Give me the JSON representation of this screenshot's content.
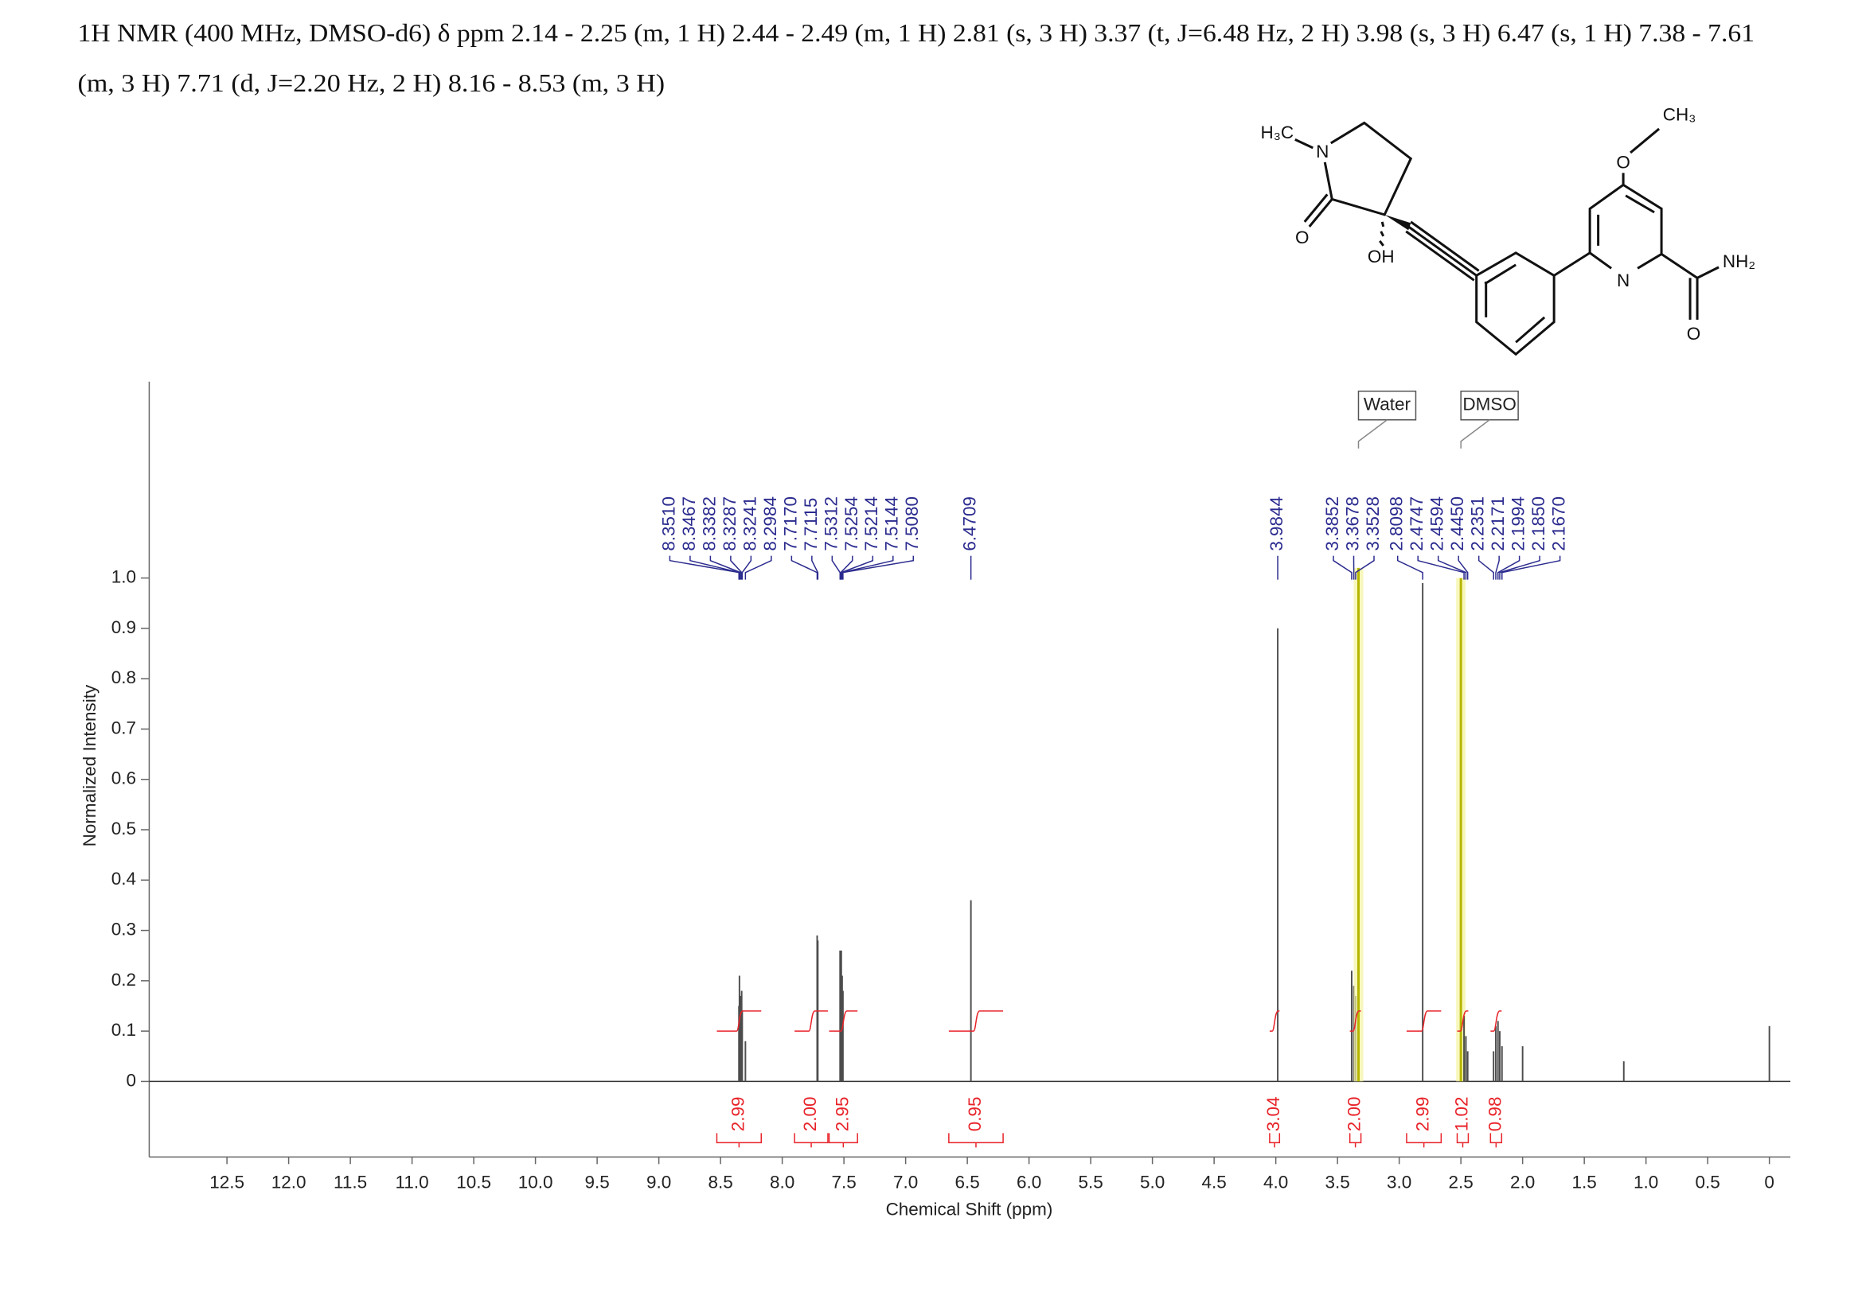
{
  "chart_data": {
    "type": "spectrum",
    "title_lines": [
      "1H NMR (400 MHz, DMSO-d6) δ ppm 2.14 - 2.25 (m, 1 H) 2.44 - 2.49 (m, 1 H) 2.81 (s, 3 H) 3.37 (t, J=6.48 Hz, 2 H) 3.98 (s, 3 H) 6.47 (s, 1 H) 7.38 - 7.61",
      "(m, 3 H) 7.71 (d, J=2.20 Hz, 2 H) 8.16 - 8.53 (m, 3 H)"
    ],
    "x_label": "Chemical Shift (ppm)",
    "y_label": "Normalized Intensity",
    "xlim": [
      13.13,
      -0.17
    ],
    "ylim": [
      -0.15,
      1.39
    ],
    "xticks": [
      12.5,
      {
        "value": 12,
        "label": "12.0"
      },
      11.5,
      {
        "value": 11,
        "label": "11.0"
      },
      10.5,
      {
        "value": 10,
        "label": "10.0"
      },
      9.5,
      {
        "value": 9,
        "label": "9.0"
      },
      8.5,
      {
        "value": 8,
        "label": "8.0"
      },
      7.5,
      {
        "value": 7,
        "label": "7.0"
      },
      6.5,
      {
        "value": 6,
        "label": "6.0"
      },
      5.5,
      {
        "value": 5,
        "label": "5.0"
      },
      4.5,
      {
        "value": 4,
        "label": "4.0"
      },
      3.5,
      {
        "value": 3,
        "label": "3.0"
      },
      2.5,
      {
        "value": 2,
        "label": "2.0"
      },
      1.5,
      {
        "value": 1,
        "label": "1.0"
      },
      0.5,
      0
    ],
    "yticks": [
      0,
      0.1,
      0.2,
      0.3,
      0.4,
      0.5,
      0.6,
      0.7,
      0.8,
      0.9,
      {
        "value": 1,
        "label": "1.0"
      }
    ],
    "peaks": {
      "x": [
        8.351,
        8.3467,
        8.3382,
        8.3287,
        8.3241,
        8.2984,
        7.717,
        7.7115,
        7.5312,
        7.5254,
        7.5214,
        7.5144,
        7.508,
        6.4709,
        3.9844,
        3.3852,
        3.3678,
        3.3528,
        3.33,
        2.8098,
        2.5,
        2.4747,
        2.4594,
        2.445,
        2.2351,
        2.2171,
        2.1994,
        2.185,
        2.167,
        2.0,
        1.18,
        0
      ],
      "values": [
        0.15,
        0.21,
        0.17,
        0.18,
        0.14,
        0.08,
        0.29,
        0.28,
        0.26,
        0.24,
        0.26,
        0.21,
        0.18,
        0.36,
        0.9,
        0.22,
        0.19,
        0.17,
        1.02,
        0.99,
        1.0,
        0.13,
        0.09,
        0.06,
        0.06,
        0.11,
        0.12,
        0.1,
        0.07,
        0.07,
        0.04,
        0.11
      ],
      "x_labels": [
        "8.3510",
        "8.3467",
        "8.3382",
        "8.3287",
        "8.3241",
        "8.2984",
        "7.7170",
        "7.7115",
        "7.5312",
        "7.5254",
        "7.5214",
        "7.5144",
        "7.5080",
        "6.4709",
        "3.9844",
        "3.3852",
        "3.3678",
        "3.3528",
        null,
        "2.8098",
        null,
        "2.4747",
        "2.4594",
        "2.4450",
        "2.2351",
        "2.2171",
        "2.1994",
        "2.1850",
        "2.1670",
        null,
        null,
        null
      ],
      "colors": [
        "#4d4d4d",
        "#4d4d4d",
        "#4d4d4d",
        "#4d4d4d",
        "#4d4d4d",
        "#4d4d4d",
        "#4d4d4d",
        "#4d4d4d",
        "#4d4d4d",
        "#4d4d4d",
        "#4d4d4d",
        "#4d4d4d",
        "#4d4d4d",
        "#4d4d4d",
        "#4d4d4d",
        "#4d4d4d",
        "#4d4d4d",
        "#4d4d4d",
        "#b5b500",
        "#4d4d4d",
        "#b5b500",
        "#4d4d4d",
        "#4d4d4d",
        "#4d4d4d",
        "#4d4d4d",
        "#4d4d4d",
        "#4d4d4d",
        "#4d4d4d",
        "#4d4d4d",
        "#4d4d4d",
        "#4d4d4d",
        "#4d4d4d"
      ]
    },
    "integrals": {
      "from": [
        8.53,
        7.9,
        7.62,
        6.65,
        4.05,
        3.4,
        2.94,
        2.53,
        2.26
      ],
      "to": [
        8.17,
        7.63,
        7.39,
        6.21,
        3.97,
        3.31,
        2.66,
        2.44,
        2.17
      ],
      "values": [
        2.99,
        2,
        2.95,
        0.95,
        3.04,
        2,
        2.99,
        1.02,
        0.98
      ],
      "value_labels": [
        "2.99",
        "2.00",
        "2.95",
        "0.95",
        "3.04",
        "2.00",
        "2.99",
        "1.02",
        "0.98"
      ],
      "color": "#e8232a"
    },
    "annotations": [
      {
        "text": "Water",
        "x": 3.33
      },
      {
        "text": "DMSO",
        "x": 2.5
      }
    ],
    "structure": {
      "labels": [
        "H₃C",
        "N",
        "O",
        "OH",
        "N",
        "NH₂",
        "O",
        "CH₃",
        "O"
      ]
    }
  }
}
